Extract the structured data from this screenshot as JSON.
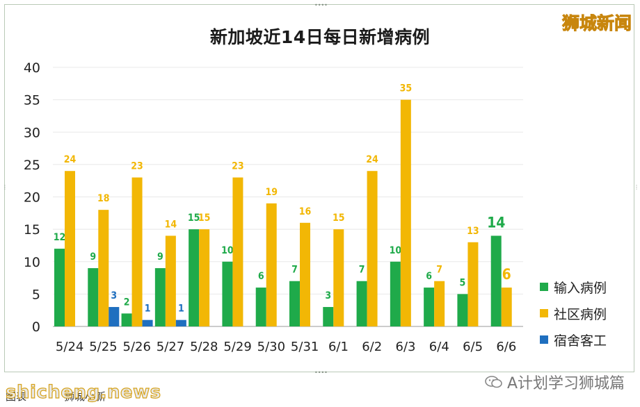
{
  "brand": "狮城新闻",
  "footer": {
    "watermark": "shicheng.news",
    "caption": "图表",
    "source": "狮城小新",
    "account": "A计划学习狮城篇"
  },
  "colors": {
    "import": "#1faa4a",
    "community": "#f2b705",
    "dorm": "#1f6fbf"
  },
  "chart_data": {
    "type": "bar",
    "title": "新加坡近14日每日新增病例",
    "categories": [
      "5/24",
      "5/25",
      "5/26",
      "5/27",
      "5/28",
      "5/29",
      "5/30",
      "5/31",
      "6/1",
      "6/2",
      "6/3",
      "6/4",
      "6/5",
      "6/6"
    ],
    "series": [
      {
        "name": "输入病例",
        "values": [
          12,
          9,
          2,
          9,
          15,
          10,
          6,
          7,
          3,
          7,
          10,
          6,
          5,
          14
        ]
      },
      {
        "name": "社区病例",
        "values": [
          24,
          18,
          23,
          14,
          15,
          23,
          19,
          16,
          15,
          24,
          35,
          7,
          13,
          6
        ]
      },
      {
        "name": "宿舍客工",
        "values": [
          0,
          3,
          1,
          1,
          0,
          0,
          0,
          0,
          0,
          0,
          0,
          0,
          0,
          0
        ]
      }
    ],
    "ylim": [
      0,
      40
    ],
    "yticks": [
      0,
      5,
      10,
      15,
      20,
      25,
      30,
      35,
      40
    ],
    "legend_position": "right",
    "grid": true
  }
}
